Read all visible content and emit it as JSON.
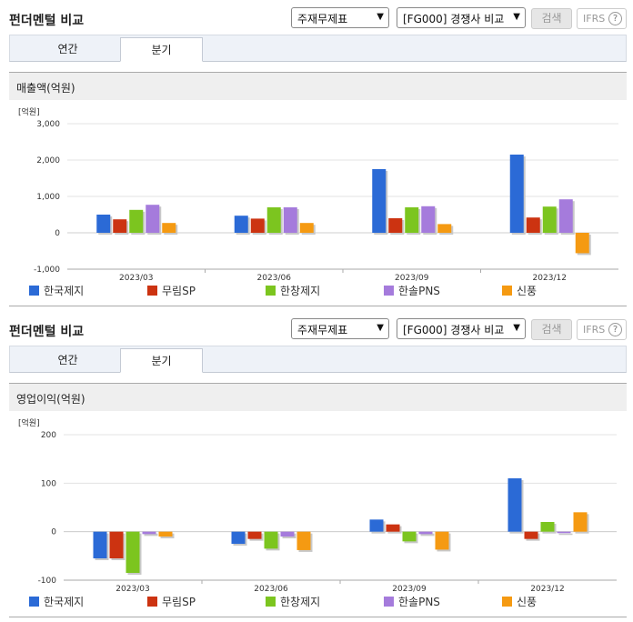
{
  "panels": [
    {
      "title": "펀더멘털 비교",
      "select_statement": "주재무제표",
      "select_compare": "[FG000] 경쟁사 비교",
      "search_label": "검색",
      "ifrs_label": "IFRS",
      "help_label": "?",
      "tabs": [
        {
          "label": "연간",
          "active": false
        },
        {
          "label": "분기",
          "active": true
        }
      ],
      "section_label": "매출액(억원)"
    },
    {
      "title": "펀더멘털 비교",
      "select_statement": "주재무제표",
      "select_compare": "[FG000] 경쟁사 비교",
      "search_label": "검색",
      "ifrs_label": "IFRS",
      "help_label": "?",
      "tabs": [
        {
          "label": "연간",
          "active": false
        },
        {
          "label": "분기",
          "active": true
        }
      ],
      "section_label": "영업이익(억원)"
    }
  ],
  "colors": {
    "한국제지": "#2b6ad6",
    "무림SP": "#cc3311",
    "한창제지": "#7cc51f",
    "한솔PNS": "#a57bdc",
    "신풍": "#f59a12"
  },
  "chart_data": [
    {
      "type": "bar",
      "unit_label": "[억원]",
      "categories": [
        "2023/03",
        "2023/06",
        "2023/09",
        "2023/12"
      ],
      "ylim": [
        -1000,
        3000
      ],
      "yticks": [
        -1000,
        0,
        1000,
        2000,
        3000
      ],
      "ytick_labels": [
        "-1,000",
        "0",
        "1,000",
        "2,000",
        "3,000"
      ],
      "grid": true,
      "legend": "bottom",
      "series": [
        {
          "name": "한국제지",
          "values": [
            500,
            470,
            1750,
            2150
          ]
        },
        {
          "name": "무림SP",
          "values": [
            370,
            390,
            400,
            420
          ]
        },
        {
          "name": "한창제지",
          "values": [
            630,
            700,
            700,
            720
          ]
        },
        {
          "name": "한솔PNS",
          "values": [
            770,
            700,
            730,
            920
          ]
        },
        {
          "name": "신풍",
          "values": [
            270,
            270,
            240,
            -560
          ]
        }
      ]
    },
    {
      "type": "bar",
      "unit_label": "[억원]",
      "categories": [
        "2023/03",
        "2023/06",
        "2023/09",
        "2023/12"
      ],
      "ylim": [
        -100,
        200
      ],
      "yticks": [
        -100,
        0,
        100,
        200
      ],
      "ytick_labels": [
        "-100",
        "0",
        "100",
        "200"
      ],
      "grid": true,
      "legend": "bottom",
      "series": [
        {
          "name": "한국제지",
          "values": [
            -55,
            -25,
            25,
            110
          ]
        },
        {
          "name": "무림SP",
          "values": [
            -55,
            -15,
            15,
            -15
          ]
        },
        {
          "name": "한창제지",
          "values": [
            -85,
            -35,
            -20,
            20
          ]
        },
        {
          "name": "한솔PNS",
          "values": [
            -5,
            -10,
            -5,
            -3
          ]
        },
        {
          "name": "신풍",
          "values": [
            -10,
            -38,
            -37,
            40
          ]
        }
      ]
    }
  ]
}
